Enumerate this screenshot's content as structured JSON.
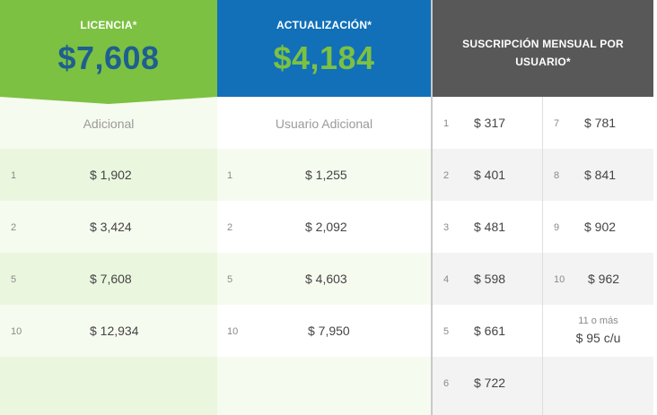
{
  "licencia": {
    "title": "LICENCIA*",
    "price": "$7,608",
    "subheader": "Adicional",
    "rows": [
      {
        "qty": "1",
        "price": "$ 1,902"
      },
      {
        "qty": "2",
        "price": "$ 3,424"
      },
      {
        "qty": "5",
        "price": "$ 7,608"
      },
      {
        "qty": "10",
        "price": "$ 12,934"
      }
    ]
  },
  "actualizacion": {
    "title": "ACTUALIZACIÓN*",
    "price": "$4,184",
    "subheader": "Usuario Adicional",
    "rows": [
      {
        "qty": "1",
        "price": "$ 1,255"
      },
      {
        "qty": "2",
        "price": "$ 2,092"
      },
      {
        "qty": "5",
        "price": "$ 4,603"
      },
      {
        "qty": "10",
        "price": "$ 7,950"
      }
    ]
  },
  "suscripcion": {
    "title": "SUSCRIPCIÓN MENSUAL POR USUARIO*",
    "left": [
      {
        "qty": "1",
        "price": "$ 317"
      },
      {
        "qty": "2",
        "price": "$ 401"
      },
      {
        "qty": "3",
        "price": "$ 481"
      },
      {
        "qty": "4",
        "price": "$ 598"
      },
      {
        "qty": "5",
        "price": "$ 661"
      },
      {
        "qty": "6",
        "price": "$ 722"
      }
    ],
    "right": [
      {
        "qty": "7",
        "price": "$ 781"
      },
      {
        "qty": "8",
        "price": "$ 841"
      },
      {
        "qty": "9",
        "price": "$ 902"
      },
      {
        "qty": "10",
        "price": "$ 962"
      }
    ],
    "extra": {
      "label": "11 o más",
      "price": "$ 95 c/u"
    }
  },
  "colors": {
    "licencia_header": "#7cc142",
    "licencia_price": "#1e5f8f",
    "actualizacion_header": "#1170b8",
    "actualizacion_price": "#7cc142",
    "suscripcion_header": "#585858"
  }
}
